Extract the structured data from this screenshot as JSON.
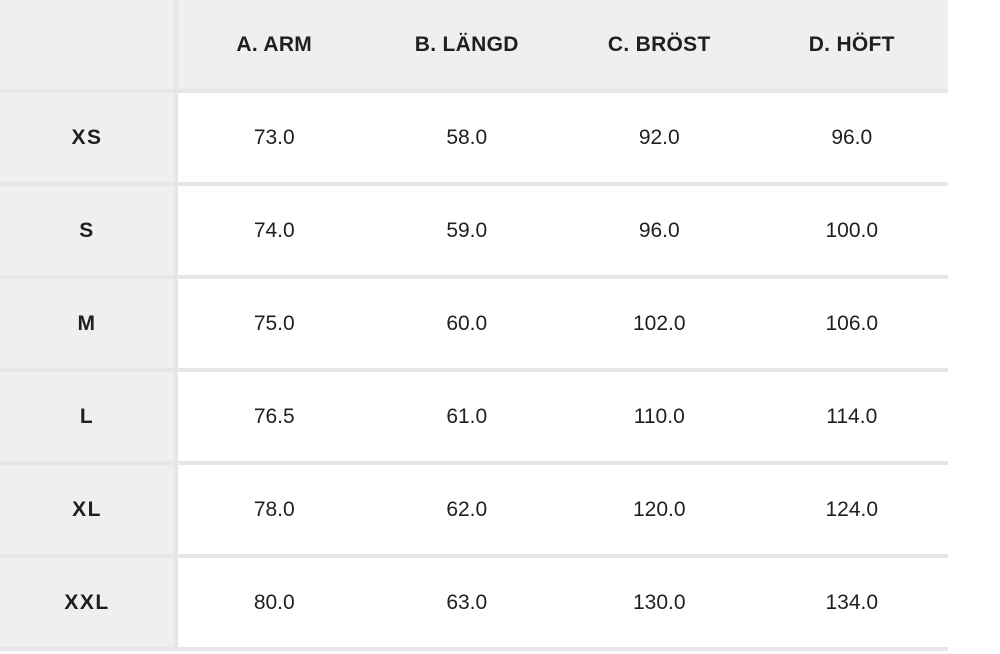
{
  "table": {
    "headers": [
      "",
      "A. ARM",
      "B. LÄNGD",
      "C. BRÖST",
      "D. HÖFT"
    ],
    "rows": [
      {
        "size": "XS",
        "values": [
          "73.0",
          "58.0",
          "92.0",
          "96.0"
        ]
      },
      {
        "size": "S",
        "values": [
          "74.0",
          "59.0",
          "96.0",
          "100.0"
        ]
      },
      {
        "size": "M",
        "values": [
          "75.0",
          "60.0",
          "102.0",
          "106.0"
        ]
      },
      {
        "size": "L",
        "values": [
          "76.5",
          "61.0",
          "110.0",
          "114.0"
        ]
      },
      {
        "size": "XL",
        "values": [
          "78.0",
          "62.0",
          "120.0",
          "124.0"
        ]
      },
      {
        "size": "XXL",
        "values": [
          "80.0",
          "63.0",
          "130.0",
          "134.0"
        ]
      }
    ]
  },
  "colors": {
    "header_background": "#efefef",
    "grid_line": "#e6e6e6",
    "cell_background": "#ffffff",
    "text": "#1f1f1f"
  }
}
